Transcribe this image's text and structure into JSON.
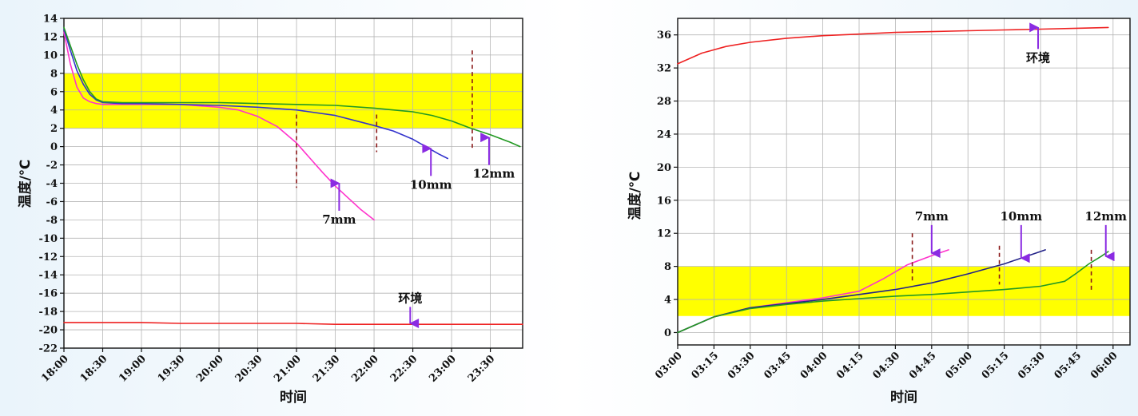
{
  "chart_data": [
    {
      "type": "line",
      "xlabel": "时间",
      "ylabel": "温度/℃",
      "x_ticks": [
        "18:00",
        "18:30",
        "19:00",
        "19:30",
        "20:00",
        "20:30",
        "21:00",
        "21:30",
        "22:00",
        "22:30",
        "23:00",
        "23:30"
      ],
      "xlim": [
        "18:00",
        "23:55"
      ],
      "ylim": [
        -22,
        14
      ],
      "y_ticks": [
        14,
        12,
        10,
        8,
        6,
        4,
        2,
        0,
        -2,
        -4,
        -6,
        -8,
        -10,
        -12,
        -14,
        -16,
        -18,
        -20,
        -22
      ],
      "grid": true,
      "highlight_band": {
        "from": 2,
        "to": 8,
        "color": "#ffff00"
      },
      "series": [
        {
          "name": "7mm",
          "color": "#ff33cc",
          "x": [
            "18:00",
            "18:05",
            "18:10",
            "18:15",
            "18:20",
            "18:25",
            "18:30",
            "18:45",
            "19:00",
            "19:30",
            "20:00",
            "20:15",
            "20:30",
            "20:45",
            "21:00",
            "21:10",
            "21:20",
            "21:30",
            "21:40",
            "21:50",
            "22:00"
          ],
          "y": [
            12.5,
            9,
            6.5,
            5.3,
            4.9,
            4.7,
            4.6,
            4.6,
            4.6,
            4.6,
            4.3,
            4.0,
            3.3,
            2.2,
            0.4,
            -1.2,
            -2.8,
            -4.3,
            -5.6,
            -6.9,
            -8.0
          ]
        },
        {
          "name": "10mm",
          "color": "#3333cc",
          "x": [
            "18:00",
            "18:05",
            "18:10",
            "18:15",
            "18:20",
            "18:25",
            "18:30",
            "18:45",
            "19:00",
            "19:30",
            "20:00",
            "20:30",
            "21:00",
            "21:30",
            "22:00",
            "22:15",
            "22:30",
            "22:40",
            "22:50",
            "22:57"
          ],
          "y": [
            12.8,
            10.5,
            8.3,
            6.8,
            5.7,
            5.1,
            4.8,
            4.7,
            4.7,
            4.6,
            4.5,
            4.3,
            4.0,
            3.4,
            2.3,
            1.7,
            0.8,
            0.0,
            -0.8,
            -1.3
          ]
        },
        {
          "name": "12mm",
          "color": "#229922",
          "x": [
            "18:00",
            "18:05",
            "18:10",
            "18:15",
            "18:20",
            "18:25",
            "18:30",
            "18:45",
            "19:00",
            "19:30",
            "20:00",
            "20:30",
            "21:00",
            "21:30",
            "22:00",
            "22:30",
            "22:45",
            "23:00",
            "23:15",
            "23:30",
            "23:45",
            "23:53"
          ],
          "y": [
            13.0,
            11.0,
            9.0,
            7.3,
            6.0,
            5.2,
            4.9,
            4.8,
            4.8,
            4.8,
            4.8,
            4.7,
            4.6,
            4.5,
            4.2,
            3.8,
            3.4,
            2.8,
            2.0,
            1.3,
            0.5,
            0.0
          ]
        },
        {
          "name": "环境",
          "color": "#ee2222",
          "x": [
            "18:00",
            "19:00",
            "19:30",
            "21:00",
            "21:30",
            "23:55"
          ],
          "y": [
            -19.2,
            -19.2,
            -19.3,
            -19.3,
            -19.4,
            -19.4
          ]
        }
      ],
      "dashed_markers": [
        {
          "x": "21:00",
          "y_from": 3.5,
          "y_to": -4.5
        },
        {
          "x": "22:02",
          "y_from": 3.5,
          "y_to": -0.6
        },
        {
          "x": "23:16",
          "y_from": 10.5,
          "y_to": -0.3
        }
      ],
      "annotations": [
        {
          "text": "7mm",
          "arrow_x": "21:33",
          "arrow_from": -7.0,
          "arrow_to": -4.0
        },
        {
          "text": "10mm",
          "arrow_x": "22:44",
          "arrow_from": -3.2,
          "arrow_to": -0.2
        },
        {
          "text": "12mm",
          "arrow_x": "23:29",
          "arrow_from": -2.0,
          "arrow_to": 1.0
        },
        {
          "text": "环境",
          "arrow_x": "22:28",
          "arrow_from": -17.5,
          "arrow_to": -19.3
        }
      ]
    },
    {
      "type": "line",
      "xlabel": "时间",
      "ylabel": "温度/℃",
      "x_ticks": [
        "03:00",
        "03:15",
        "03:30",
        "03:45",
        "04:00",
        "04:15",
        "04:30",
        "04:45",
        "05:00",
        "05:15",
        "05:30",
        "05:45",
        "06:00"
      ],
      "xlim": [
        "03:00",
        "06:07"
      ],
      "ylim": [
        -1.5,
        38
      ],
      "y_ticks": [
        36,
        32,
        28,
        24,
        20,
        16,
        12,
        8,
        4,
        0
      ],
      "grid": true,
      "highlight_band": {
        "from": 2,
        "to": 8,
        "color": "#ffff00"
      },
      "series": [
        {
          "name": "7mm",
          "color": "#ff33cc",
          "x": [
            "03:00",
            "03:15",
            "03:30",
            "03:45",
            "04:00",
            "04:15",
            "04:25",
            "04:35",
            "04:45",
            "04:52"
          ],
          "y": [
            0,
            1.9,
            3.0,
            3.6,
            4.2,
            5.0,
            6.5,
            8.2,
            9.3,
            10.0
          ]
        },
        {
          "name": "10mm",
          "color": "#222288",
          "x": [
            "03:00",
            "03:15",
            "03:30",
            "03:45",
            "04:00",
            "04:15",
            "04:30",
            "04:45",
            "05:00",
            "05:15",
            "05:30",
            "05:32"
          ],
          "y": [
            0,
            1.9,
            3.0,
            3.5,
            4.0,
            4.6,
            5.2,
            6.0,
            7.1,
            8.3,
            9.8,
            10.0
          ]
        },
        {
          "name": "12mm",
          "color": "#229922",
          "x": [
            "03:00",
            "03:15",
            "03:30",
            "03:45",
            "04:00",
            "04:15",
            "04:30",
            "04:45",
            "05:00",
            "05:15",
            "05:30",
            "05:40",
            "05:45",
            "05:50",
            "05:55",
            "05:58"
          ],
          "y": [
            0,
            1.9,
            2.9,
            3.4,
            3.8,
            4.1,
            4.4,
            4.6,
            4.9,
            5.2,
            5.6,
            6.2,
            7.2,
            8.3,
            9.2,
            9.8
          ]
        },
        {
          "name": "环境",
          "color": "#ee2222",
          "x": [
            "03:00",
            "03:10",
            "03:20",
            "03:30",
            "03:45",
            "04:00",
            "04:15",
            "04:30",
            "04:45",
            "05:00",
            "05:15",
            "05:30",
            "05:45",
            "05:58"
          ],
          "y": [
            32.5,
            33.8,
            34.6,
            35.1,
            35.6,
            35.9,
            36.1,
            36.3,
            36.4,
            36.5,
            36.6,
            36.7,
            36.8,
            36.9
          ]
        }
      ],
      "dashed_markers": [
        {
          "x": "04:37",
          "y_from": 12.0,
          "y_to": 6.0
        },
        {
          "x": "05:13",
          "y_from": 10.5,
          "y_to": 5.8
        },
        {
          "x": "05:51",
          "y_from": 10.0,
          "y_to": 5.0
        }
      ],
      "annotations": [
        {
          "text": "7mm",
          "arrow_x": "04:45",
          "arrow_from": 13.0,
          "arrow_to": 9.6
        },
        {
          "text": "10mm",
          "arrow_x": "05:22",
          "arrow_from": 13.0,
          "arrow_to": 9.0
        },
        {
          "text": "12mm",
          "arrow_x": "05:57",
          "arrow_from": 13.0,
          "arrow_to": 9.2
        },
        {
          "text": "环境",
          "arrow_x": "05:29",
          "arrow_from": 34.3,
          "arrow_to": 36.9
        }
      ]
    }
  ]
}
